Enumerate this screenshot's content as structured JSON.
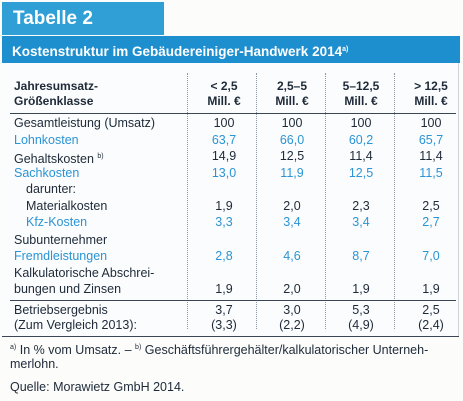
{
  "table_label": "Tabelle 2",
  "title": "Kostenstruktur im Gebäudereiniger-Handwerk 2014",
  "title_mark": "a)",
  "header": {
    "row_label_line1": "Jahresumsatz-",
    "row_label_line2": "Größenklasse",
    "columns": [
      {
        "line1": "< 2,5",
        "line2": "Mill. €"
      },
      {
        "line1": "2,5–5",
        "line2": "Mill. €"
      },
      {
        "line1": "5–12,5",
        "line2": "Mill. €"
      },
      {
        "line1": "> 12,5",
        "line2": "Mill. €"
      }
    ]
  },
  "rows": {
    "gesamtleistung": {
      "label": "Gesamtleistung (Umsatz)",
      "values": [
        "100",
        "100",
        "100",
        "100"
      ]
    },
    "lohnkosten": {
      "label": "Lohnkosten",
      "values": [
        "63,7",
        "66,0",
        "60,2",
        "65,7"
      ]
    },
    "gehaltskosten": {
      "label": "Gehaltskosten",
      "mark": "b)",
      "values": [
        "14,9",
        "12,5",
        "11,4",
        "11,4"
      ]
    },
    "sachkosten": {
      "label": "Sachkosten",
      "values": [
        "13,0",
        "11,9",
        "12,5",
        "11,5"
      ]
    },
    "darunter": {
      "label": "darunter:"
    },
    "materialkosten": {
      "label": "Materialkosten",
      "values": [
        "1,9",
        "2,0",
        "2,3",
        "2,5"
      ]
    },
    "kfz": {
      "label": "Kfz-Kosten",
      "values": [
        "3,3",
        "3,4",
        "3,4",
        "2,7"
      ]
    },
    "subunternehmer": {
      "label": "Subunternehmer"
    },
    "fremdleistungen": {
      "label": "Fremdleistungen",
      "values": [
        "2,8",
        "4,6",
        "8,7",
        "7,0"
      ]
    },
    "kalkulatorisch": {
      "label_line1": "Kalkulatorische Abschrei-",
      "label_line2": "bungen und Zinsen",
      "values": [
        "1,9",
        "2,0",
        "1,9",
        "1,9"
      ]
    },
    "betriebsergebnis": {
      "label": "Betriebsergebnis",
      "values": [
        "3,7",
        "3,0",
        "5,3",
        "2,5"
      ]
    },
    "vergleich": {
      "label": "(Zum Vergleich 2013):",
      "values": [
        "(3,3)",
        "(2,2)",
        "(4,9)",
        "(2,4)"
      ]
    }
  },
  "footnotes": {
    "a_mark": "a)",
    "a_text": "In % vom Umsatz. –",
    "b_mark": "b)",
    "b_text": "Geschäftsführergehälter/kalkulatorischer Unterneh-",
    "b_text_cont": "merlohn.",
    "source": "Quelle: Morawietz GmbH 2014."
  },
  "colors": {
    "tab_blue": "#2f9fd6",
    "header_blue": "#1d8fcf",
    "text_blue": "#2b94d4",
    "text_dark": "#1e2a38"
  }
}
